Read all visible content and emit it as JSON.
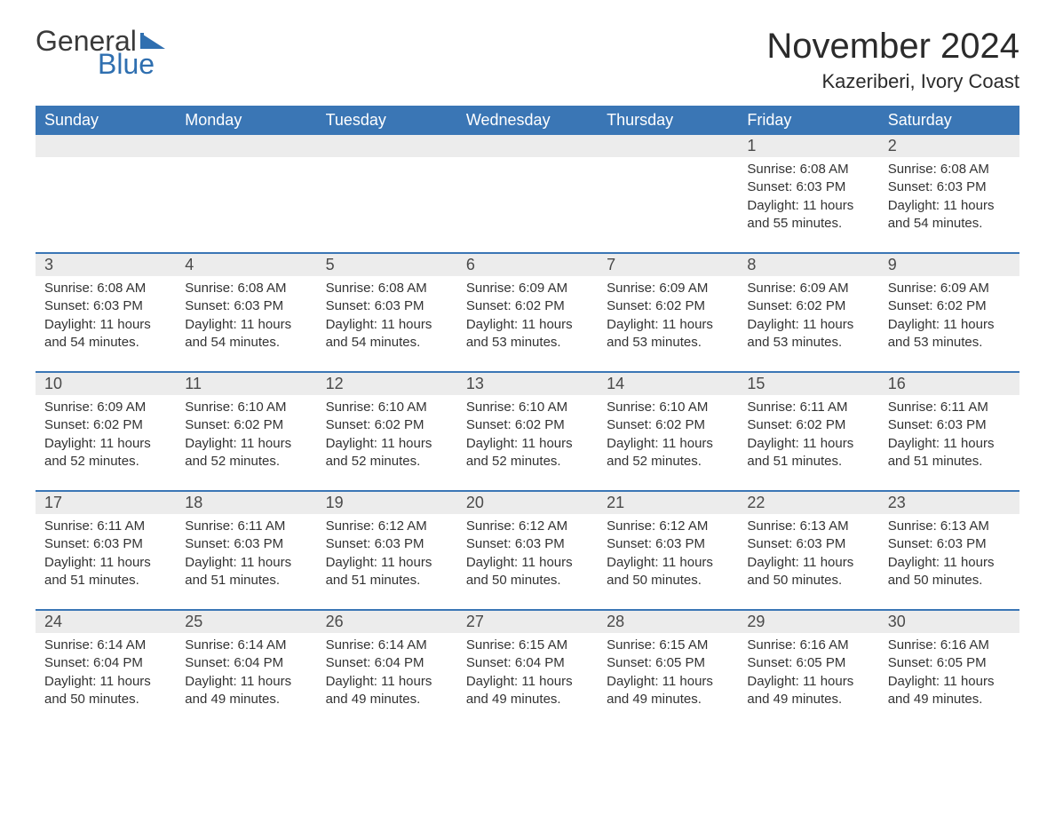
{
  "brand": {
    "general": "General",
    "blue": "Blue",
    "flag_color": "#2f6fb0"
  },
  "title": "November 2024",
  "location": "Kazeriberi, Ivory Coast",
  "colors": {
    "header_bg": "#3a76b5",
    "header_text": "#ffffff",
    "row_divider": "#3a76b5",
    "daynum_bg": "#ececec",
    "text": "#333333",
    "page_bg": "#ffffff"
  },
  "weekdays": [
    "Sunday",
    "Monday",
    "Tuesday",
    "Wednesday",
    "Thursday",
    "Friday",
    "Saturday"
  ],
  "weeks": [
    [
      {
        "blank": true
      },
      {
        "blank": true
      },
      {
        "blank": true
      },
      {
        "blank": true
      },
      {
        "blank": true
      },
      {
        "day": 1,
        "sunrise": "6:08 AM",
        "sunset": "6:03 PM",
        "daylight": "11 hours and 55 minutes."
      },
      {
        "day": 2,
        "sunrise": "6:08 AM",
        "sunset": "6:03 PM",
        "daylight": "11 hours and 54 minutes."
      }
    ],
    [
      {
        "day": 3,
        "sunrise": "6:08 AM",
        "sunset": "6:03 PM",
        "daylight": "11 hours and 54 minutes."
      },
      {
        "day": 4,
        "sunrise": "6:08 AM",
        "sunset": "6:03 PM",
        "daylight": "11 hours and 54 minutes."
      },
      {
        "day": 5,
        "sunrise": "6:08 AM",
        "sunset": "6:03 PM",
        "daylight": "11 hours and 54 minutes."
      },
      {
        "day": 6,
        "sunrise": "6:09 AM",
        "sunset": "6:02 PM",
        "daylight": "11 hours and 53 minutes."
      },
      {
        "day": 7,
        "sunrise": "6:09 AM",
        "sunset": "6:02 PM",
        "daylight": "11 hours and 53 minutes."
      },
      {
        "day": 8,
        "sunrise": "6:09 AM",
        "sunset": "6:02 PM",
        "daylight": "11 hours and 53 minutes."
      },
      {
        "day": 9,
        "sunrise": "6:09 AM",
        "sunset": "6:02 PM",
        "daylight": "11 hours and 53 minutes."
      }
    ],
    [
      {
        "day": 10,
        "sunrise": "6:09 AM",
        "sunset": "6:02 PM",
        "daylight": "11 hours and 52 minutes."
      },
      {
        "day": 11,
        "sunrise": "6:10 AM",
        "sunset": "6:02 PM",
        "daylight": "11 hours and 52 minutes."
      },
      {
        "day": 12,
        "sunrise": "6:10 AM",
        "sunset": "6:02 PM",
        "daylight": "11 hours and 52 minutes."
      },
      {
        "day": 13,
        "sunrise": "6:10 AM",
        "sunset": "6:02 PM",
        "daylight": "11 hours and 52 minutes."
      },
      {
        "day": 14,
        "sunrise": "6:10 AM",
        "sunset": "6:02 PM",
        "daylight": "11 hours and 52 minutes."
      },
      {
        "day": 15,
        "sunrise": "6:11 AM",
        "sunset": "6:02 PM",
        "daylight": "11 hours and 51 minutes."
      },
      {
        "day": 16,
        "sunrise": "6:11 AM",
        "sunset": "6:03 PM",
        "daylight": "11 hours and 51 minutes."
      }
    ],
    [
      {
        "day": 17,
        "sunrise": "6:11 AM",
        "sunset": "6:03 PM",
        "daylight": "11 hours and 51 minutes."
      },
      {
        "day": 18,
        "sunrise": "6:11 AM",
        "sunset": "6:03 PM",
        "daylight": "11 hours and 51 minutes."
      },
      {
        "day": 19,
        "sunrise": "6:12 AM",
        "sunset": "6:03 PM",
        "daylight": "11 hours and 51 minutes."
      },
      {
        "day": 20,
        "sunrise": "6:12 AM",
        "sunset": "6:03 PM",
        "daylight": "11 hours and 50 minutes."
      },
      {
        "day": 21,
        "sunrise": "6:12 AM",
        "sunset": "6:03 PM",
        "daylight": "11 hours and 50 minutes."
      },
      {
        "day": 22,
        "sunrise": "6:13 AM",
        "sunset": "6:03 PM",
        "daylight": "11 hours and 50 minutes."
      },
      {
        "day": 23,
        "sunrise": "6:13 AM",
        "sunset": "6:03 PM",
        "daylight": "11 hours and 50 minutes."
      }
    ],
    [
      {
        "day": 24,
        "sunrise": "6:14 AM",
        "sunset": "6:04 PM",
        "daylight": "11 hours and 50 minutes."
      },
      {
        "day": 25,
        "sunrise": "6:14 AM",
        "sunset": "6:04 PM",
        "daylight": "11 hours and 49 minutes."
      },
      {
        "day": 26,
        "sunrise": "6:14 AM",
        "sunset": "6:04 PM",
        "daylight": "11 hours and 49 minutes."
      },
      {
        "day": 27,
        "sunrise": "6:15 AM",
        "sunset": "6:04 PM",
        "daylight": "11 hours and 49 minutes."
      },
      {
        "day": 28,
        "sunrise": "6:15 AM",
        "sunset": "6:05 PM",
        "daylight": "11 hours and 49 minutes."
      },
      {
        "day": 29,
        "sunrise": "6:16 AM",
        "sunset": "6:05 PM",
        "daylight": "11 hours and 49 minutes."
      },
      {
        "day": 30,
        "sunrise": "6:16 AM",
        "sunset": "6:05 PM",
        "daylight": "11 hours and 49 minutes."
      }
    ]
  ],
  "labels": {
    "sunrise": "Sunrise: ",
    "sunset": "Sunset: ",
    "daylight": "Daylight: "
  }
}
